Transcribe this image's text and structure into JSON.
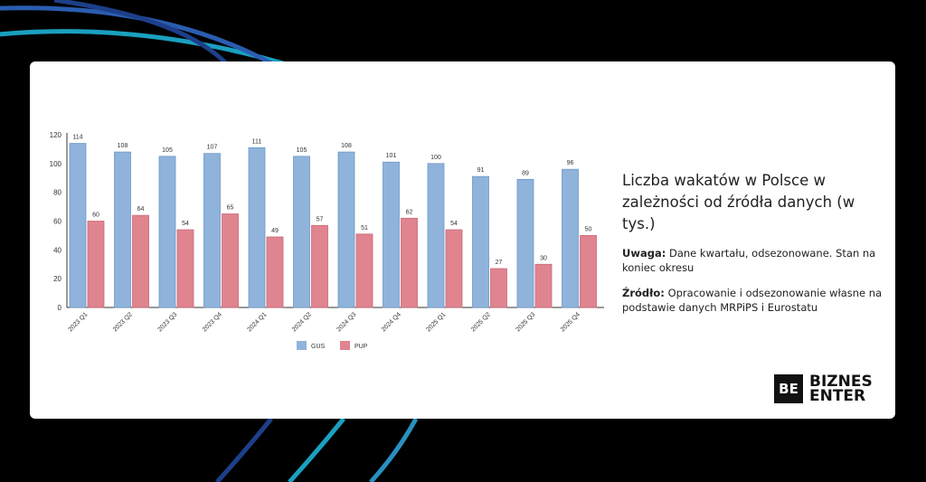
{
  "chart_data": {
    "type": "bar",
    "categories": [
      "2023 Q1",
      "2023 Q2",
      "2023 Q3",
      "2023 Q4",
      "2024 Q1",
      "2024 Q2",
      "2024 Q3",
      "2024 Q4",
      "2025 Q1",
      "2025 Q2",
      "2025 Q3",
      "2025 Q4"
    ],
    "series": [
      {
        "name": "GUS",
        "color": "#8fb3da",
        "values": [
          114,
          108,
          105,
          107,
          111,
          105,
          108,
          101,
          100,
          91,
          89,
          96
        ]
      },
      {
        "name": "PUP",
        "color": "#e0848f",
        "values": [
          60,
          64,
          54,
          65,
          49,
          57,
          51,
          62,
          54,
          27,
          30,
          50
        ]
      }
    ],
    "ylim": [
      0,
      120
    ],
    "yticks": [
      0,
      20,
      40,
      60,
      80,
      100,
      120
    ],
    "legend": "bottom",
    "grid": false
  },
  "side": {
    "title": "Liczba wakatów w Polsce w zależności od źródła danych (w tys.)",
    "note_label": "Uwaga:",
    "note_text": " Dane kwartału, odsezonowane. Stan na koniec okresu",
    "source_label": "Źródło:",
    "source_text": " Opracowanie i odsezonowanie własne na podstawie danych MRPiPS i Eurostatu"
  },
  "logo": {
    "mark": "BE",
    "line1": "BIZNES",
    "line2": "ENTER"
  }
}
